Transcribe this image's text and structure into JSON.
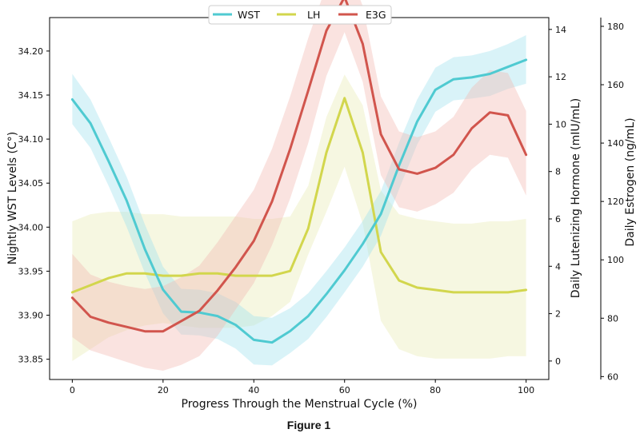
{
  "caption": "Figure 1",
  "chart_data": {
    "type": "line",
    "xlabel": "Progress Through the Menstrual Cycle (%)",
    "x_ticks": [
      0,
      20,
      40,
      60,
      80,
      100
    ],
    "xlim": [
      -5,
      105
    ],
    "legend": {
      "placement": "top-center",
      "entries": [
        "WST",
        "LH",
        "E3G"
      ]
    },
    "grid": false,
    "axes": [
      {
        "id": "wst",
        "label": "Nightly WST Levels (C°)",
        "side": "left",
        "ylim": [
          33.827,
          34.238
        ],
        "ticks": [
          33.85,
          33.9,
          33.95,
          34.0,
          34.05,
          34.1,
          34.15,
          34.2
        ],
        "tick_labels": [
          "33.85",
          "33.90",
          "33.95",
          "34.00",
          "34.05",
          "34.10",
          "34.15",
          "34.20"
        ]
      },
      {
        "id": "lh",
        "label": "Daily Lutenizing Hormone (mIU/mL)",
        "side": "right",
        "ylim": [
          -0.78,
          14.5
        ],
        "ticks": [
          0,
          2,
          4,
          6,
          8,
          10,
          12,
          14
        ],
        "tick_labels": [
          "0",
          "2",
          "4",
          "6",
          "8",
          "10",
          "12",
          "14"
        ]
      },
      {
        "id": "e3g",
        "label": "Daily Estrogen (ng/mL)",
        "side": "right-outer",
        "ylim": [
          59,
          183
        ],
        "ticks": [
          60,
          80,
          100,
          120,
          140,
          160,
          180
        ],
        "tick_labels": [
          "60",
          "80",
          "100",
          "120",
          "140",
          "160",
          "180"
        ]
      }
    ],
    "x": [
      0,
      4,
      8,
      12,
      16,
      20,
      24,
      28,
      32,
      36,
      40,
      44,
      48,
      52,
      56,
      60,
      64,
      68,
      72,
      76,
      80,
      84,
      88,
      92,
      96,
      100
    ],
    "series": [
      {
        "name": "WST",
        "axis": "wst",
        "color": "#4fcad1",
        "band_color": "#9fe2ee",
        "values": [
          34.145,
          34.118,
          34.075,
          34.03,
          33.975,
          33.929,
          33.904,
          33.903,
          33.899,
          33.889,
          33.872,
          33.869,
          33.882,
          33.899,
          33.924,
          33.951,
          33.981,
          34.015,
          34.07,
          34.12,
          34.156,
          34.168,
          34.17,
          34.174,
          34.182,
          34.19
        ],
        "lower": [
          34.117,
          34.09,
          34.047,
          34.0,
          33.948,
          33.902,
          33.878,
          33.877,
          33.873,
          33.862,
          33.844,
          33.843,
          33.857,
          33.873,
          33.898,
          33.926,
          33.955,
          33.99,
          34.043,
          34.094,
          34.131,
          34.144,
          34.146,
          34.149,
          34.157,
          34.163
        ],
        "upper": [
          34.174,
          34.145,
          34.102,
          34.057,
          34.003,
          33.955,
          33.93,
          33.929,
          33.925,
          33.915,
          33.899,
          33.897,
          33.908,
          33.925,
          33.95,
          33.977,
          34.007,
          34.041,
          34.096,
          34.145,
          34.181,
          34.193,
          34.195,
          34.2,
          34.208,
          34.218
        ]
      },
      {
        "name": "LH",
        "axis": "lh",
        "color": "#d2d64d",
        "band_color": "#e9ecb3",
        "values": [
          2.9,
          3.2,
          3.5,
          3.7,
          3.7,
          3.6,
          3.6,
          3.7,
          3.7,
          3.6,
          3.6,
          3.6,
          3.8,
          5.6,
          8.8,
          11.1,
          8.8,
          4.6,
          3.4,
          3.1,
          3.0,
          2.9,
          2.9,
          2.9,
          2.9,
          3.0
        ],
        "lower": [
          0.0,
          0.5,
          1.0,
          1.3,
          1.5,
          1.6,
          1.5,
          1.4,
          1.4,
          1.4,
          1.5,
          1.9,
          2.5,
          4.5,
          6.3,
          8.2,
          5.8,
          1.7,
          0.5,
          0.2,
          0.1,
          0.1,
          0.1,
          0.1,
          0.2,
          0.2
        ],
        "upper": [
          5.9,
          6.2,
          6.3,
          6.3,
          6.2,
          6.2,
          6.1,
          6.1,
          6.1,
          6.1,
          6.0,
          6.0,
          6.1,
          7.4,
          10.3,
          12.1,
          10.8,
          7.2,
          6.2,
          6.0,
          5.9,
          5.8,
          5.8,
          5.9,
          5.9,
          6.0
        ]
      },
      {
        "name": "E3G",
        "axis": "e3g",
        "color": "#d1554d",
        "band_color": "#f2b9b2",
        "values": [
          87.0,
          80.5,
          78.5,
          77.0,
          75.5,
          75.5,
          79.0,
          82.5,
          89.5,
          97.5,
          106.5,
          120.0,
          138.0,
          158.0,
          178.5,
          190.0,
          174.0,
          143.0,
          131.0,
          129.5,
          131.5,
          136.0,
          145.0,
          150.5,
          149.5,
          136.0
        ],
        "lower": [
          73.5,
          69.0,
          67.0,
          65.0,
          63.0,
          62.0,
          64.0,
          67.0,
          74.0,
          83.0,
          92.0,
          105.0,
          121.0,
          140.0,
          163.0,
          178.0,
          161.0,
          129.0,
          118.0,
          116.5,
          119.0,
          123.0,
          131.0,
          136.0,
          135.0,
          122.0
        ],
        "upper": [
          102.0,
          95.0,
          92.5,
          91.0,
          90.0,
          91.0,
          94.0,
          98.0,
          106.0,
          115.0,
          124.0,
          138.0,
          156.0,
          176.0,
          194.0,
          203.0,
          187.0,
          156.0,
          144.0,
          142.0,
          144.0,
          149.0,
          159.0,
          165.0,
          164.0,
          151.0
        ]
      }
    ]
  }
}
